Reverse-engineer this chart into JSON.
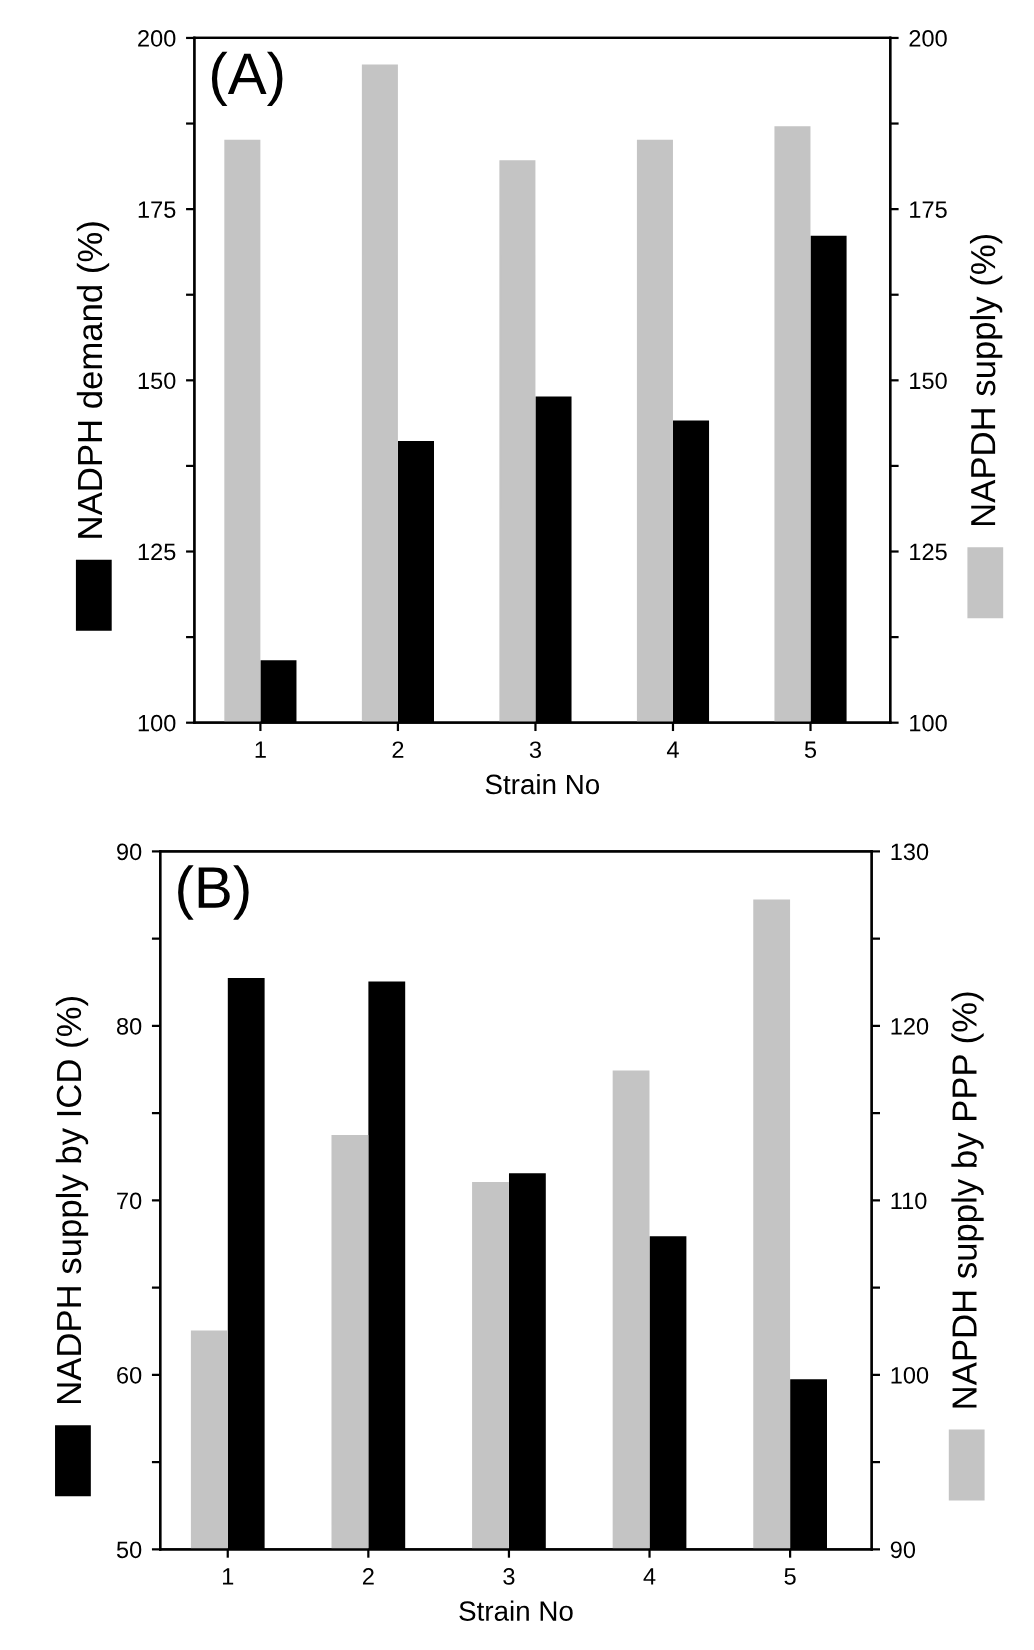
{
  "chart_data": [
    {
      "type": "bar",
      "categories": [
        "1",
        "2",
        "3",
        "4",
        "5"
      ],
      "xlabel": "Strain No",
      "ylabel": "NADPH demand (%)",
      "y2label": "NAPDH supply (%)",
      "annotations": [
        "(A)"
      ],
      "ylim": [
        100,
        200
      ],
      "yticks": [
        100,
        {
          "value": 112.5,
          "label": null
        },
        125,
        {
          "value": 137.5,
          "label": null
        },
        150,
        {
          "value": 162.5,
          "label": null
        },
        175,
        {
          "value": 187.5,
          "label": null
        },
        200
      ],
      "y2lim": [
        100,
        200
      ],
      "y2ticks": [
        100,
        {
          "value": 112.5,
          "label": null
        },
        125,
        {
          "value": 137.5,
          "label": null
        },
        150,
        {
          "value": 162.5,
          "label": null
        },
        175,
        {
          "value": 187.5,
          "label": null
        },
        200
      ],
      "series": [
        {
          "color": "#c4c4c4",
          "axis": "y2",
          "values": [
            185,
            196,
            182,
            185,
            187
          ]
        },
        {
          "color": "#000000",
          "values": [
            109,
            141,
            147.5,
            144,
            171
          ]
        }
      ]
    },
    {
      "type": "bar",
      "categories": [
        "1",
        "2",
        "3",
        "4",
        "5"
      ],
      "xlabel": "Strain No",
      "ylabel": "NADPH supply by ICD (%)",
      "y2label": "NAPDH supply by PPP (%)",
      "annotations": [
        "(B)"
      ],
      "ylim": [
        50,
        90
      ],
      "yticks": [
        50,
        {
          "value": 55,
          "label": null
        },
        60,
        {
          "value": 65,
          "label": null
        },
        70,
        {
          "value": 75,
          "label": null
        },
        80,
        {
          "value": 85,
          "label": null
        },
        90
      ],
      "y2lim": [
        90,
        130
      ],
      "y2ticks": [
        90,
        {
          "value": 95,
          "label": null
        },
        100,
        {
          "value": 105,
          "label": null
        },
        110,
        {
          "value": 115,
          "label": null
        },
        120,
        {
          "value": 125,
          "label": null
        },
        130
      ],
      "series": [
        {
          "color": "#c4c4c4",
          "axis": "y2",
          "values": [
            102.5,
            113.7,
            111,
            117.4,
            127.2
          ]
        },
        {
          "color": "#000000",
          "values": [
            82.7,
            82.5,
            71.5,
            67.9,
            59.7
          ]
        }
      ]
    }
  ]
}
